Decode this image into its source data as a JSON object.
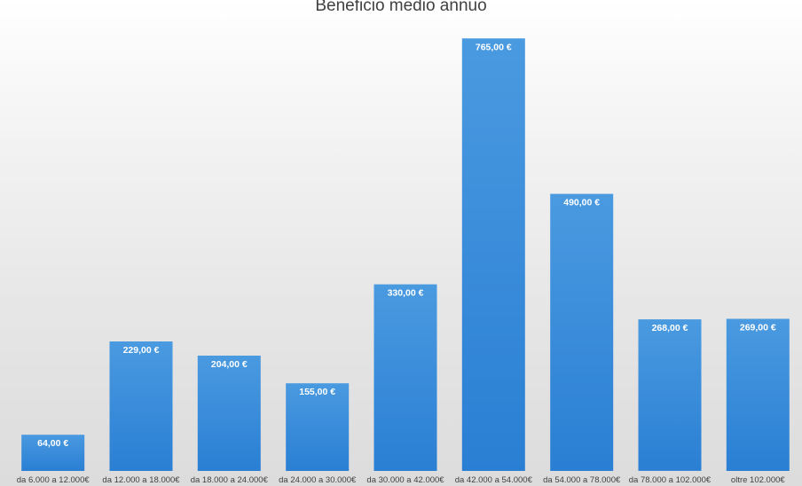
{
  "chart_data": {
    "type": "bar",
    "title": "Beneficio medio annuo",
    "xlabel": "",
    "ylabel": "",
    "categories": [
      "da 6.000 a 12.000€",
      "da 12.000 a 18.000€",
      "da 18.000 a 24.000€",
      "da 24.000 a 30.000€",
      "da 30.000 a 42.000€",
      "da 42.000 a 54.000€",
      "da 54.000 a 78.000€",
      "da 78.000 a 102.000€",
      "oltre 102.000€"
    ],
    "values": [
      64,
      229,
      204,
      155,
      330,
      765,
      490,
      268,
      269
    ],
    "value_labels": [
      "64,00 €",
      "229,00 €",
      "204,00 €",
      "155,00 €",
      "330,00 €",
      "765,00 €",
      "490,00 €",
      "268,00 €",
      "269,00 €"
    ],
    "ylim": [
      0,
      800
    ],
    "grid": false,
    "legend": "none",
    "bar_color_top": "#4a9ae0",
    "bar_color_bottom": "#2a7fd4"
  }
}
